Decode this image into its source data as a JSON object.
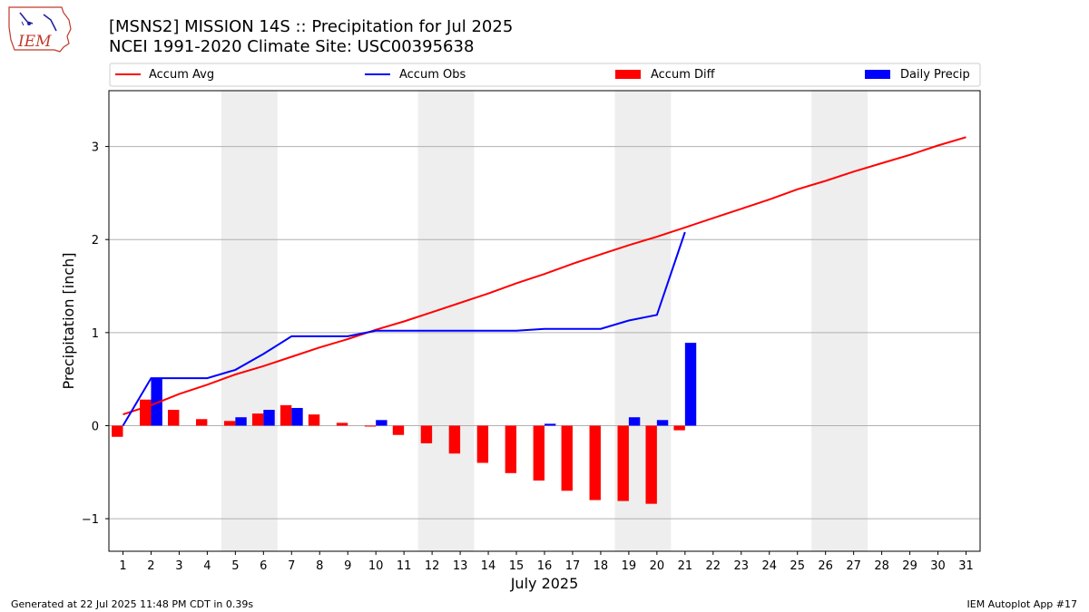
{
  "header": {
    "title_line1": "[MSNS2] MISSION 14S :: Precipitation for Jul 2025",
    "title_line2": "NCEI 1991-2020 Climate Site: USC00395638",
    "logo_text": "IEM"
  },
  "footer": {
    "generated": "Generated at 22 Jul 2025 11:48 PM CDT in 0.39s",
    "app": "IEM Autoplot App #17"
  },
  "colors": {
    "accum_avg": "#ff0000",
    "accum_obs": "#0000ff",
    "accum_diff": "#ff0000",
    "daily_precip": "#0000ff",
    "weekend_shade": "#eeeeee",
    "grid": "#b0b0b0"
  },
  "chart_data": {
    "type": "bar",
    "xlabel": "July 2025",
    "ylabel": "Precipitation [inch]",
    "xlim": [
      0.5,
      31.5
    ],
    "ylim": [
      -1.35,
      3.6
    ],
    "yticks": [
      -1,
      0,
      1,
      2,
      3
    ],
    "ytick_labels": [
      "−1",
      "0",
      "1",
      "2",
      "3"
    ],
    "grid": "horizontal",
    "legend_placement": "top",
    "days": [
      1,
      2,
      3,
      4,
      5,
      6,
      7,
      8,
      9,
      10,
      11,
      12,
      13,
      14,
      15,
      16,
      17,
      18,
      19,
      20,
      21,
      22,
      23,
      24,
      25,
      26,
      27,
      28,
      29,
      30,
      31
    ],
    "weekend_shading": [
      [
        5,
        6
      ],
      [
        12,
        13
      ],
      [
        19,
        20
      ],
      [
        26,
        27
      ]
    ],
    "series": [
      {
        "name": "Accum Avg",
        "kind": "line",
        "x": [
          1,
          2,
          3,
          4,
          5,
          6,
          7,
          8,
          9,
          10,
          11,
          12,
          13,
          14,
          15,
          16,
          17,
          18,
          19,
          20,
          21,
          22,
          23,
          24,
          25,
          26,
          27,
          28,
          29,
          30,
          31
        ],
        "values": [
          0.12,
          0.22,
          0.34,
          0.44,
          0.55,
          0.64,
          0.74,
          0.84,
          0.93,
          1.03,
          1.12,
          1.22,
          1.32,
          1.42,
          1.53,
          1.63,
          1.74,
          1.84,
          1.94,
          2.03,
          2.13,
          2.23,
          2.33,
          2.43,
          2.54,
          2.63,
          2.73,
          2.82,
          2.91,
          3.01,
          3.1
        ]
      },
      {
        "name": "Accum Obs",
        "kind": "line",
        "x": [
          1,
          2,
          3,
          4,
          5,
          6,
          7,
          8,
          9,
          10,
          11,
          12,
          13,
          14,
          15,
          16,
          17,
          18,
          19,
          20,
          21
        ],
        "values": [
          0.0,
          0.51,
          0.51,
          0.51,
          0.6,
          0.77,
          0.96,
          0.96,
          0.96,
          1.02,
          1.02,
          1.02,
          1.02,
          1.02,
          1.02,
          1.04,
          1.04,
          1.04,
          1.13,
          1.19,
          2.08
        ]
      },
      {
        "name": "Accum Diff",
        "kind": "bar",
        "x": [
          1,
          2,
          3,
          4,
          5,
          6,
          7,
          8,
          9,
          10,
          11,
          12,
          13,
          14,
          15,
          16,
          17,
          18,
          19,
          20,
          21
        ],
        "values": [
          -0.12,
          0.28,
          0.17,
          0.07,
          0.05,
          0.13,
          0.22,
          0.12,
          0.03,
          -0.01,
          -0.1,
          -0.19,
          -0.3,
          -0.4,
          -0.51,
          -0.59,
          -0.7,
          -0.8,
          -0.81,
          -0.84,
          -0.05
        ]
      },
      {
        "name": "Daily Precip",
        "kind": "bar",
        "x": [
          1,
          2,
          3,
          4,
          5,
          6,
          7,
          8,
          9,
          10,
          11,
          12,
          13,
          14,
          15,
          16,
          17,
          18,
          19,
          20,
          21
        ],
        "values": [
          0.0,
          0.51,
          0.0,
          0.0,
          0.09,
          0.17,
          0.19,
          0.0,
          0.0,
          0.06,
          0.0,
          0.0,
          0.0,
          0.0,
          0.0,
          0.02,
          0.0,
          0.0,
          0.09,
          0.06,
          0.89
        ]
      }
    ]
  }
}
